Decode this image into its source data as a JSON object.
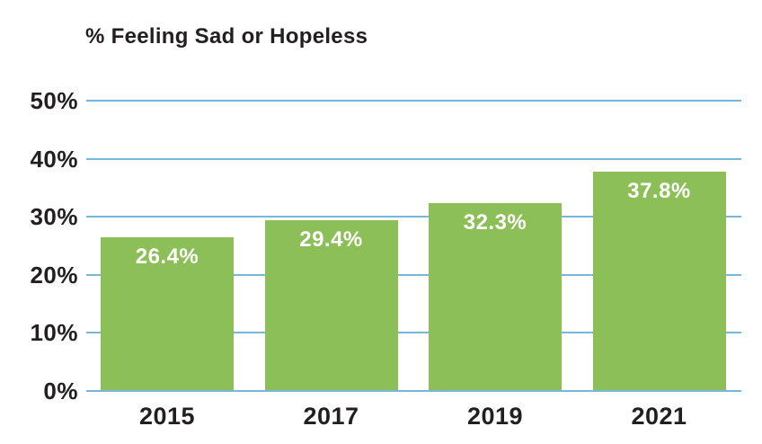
{
  "chart_data": {
    "type": "bar",
    "title": "% Feeling Sad or Hopeless",
    "categories": [
      "2015",
      "2017",
      "2019",
      "2021"
    ],
    "values": [
      26.4,
      29.4,
      32.3,
      37.8
    ],
    "bar_labels": [
      "26.4%",
      "29.4%",
      "32.3%",
      "37.8%"
    ],
    "xlabel": "",
    "ylabel": "",
    "ylim": [
      0,
      50
    ],
    "y_ticks": [
      {
        "value": 50,
        "label": "50%"
      },
      {
        "value": 40,
        "label": "40%"
      },
      {
        "value": 30,
        "label": "30%"
      },
      {
        "value": 20,
        "label": "20%"
      },
      {
        "value": 10,
        "label": "10%"
      },
      {
        "value": 0,
        "label": "0%"
      }
    ],
    "grid": "horizontal-only",
    "legend": "none",
    "bar_label_position": "inside-top",
    "colors": {
      "bar": "#8cbf57",
      "gridline": "#78b7dc",
      "axis_text": "#231f20",
      "bar_label_text": "#ffffff",
      "background": "#ffffff"
    }
  }
}
